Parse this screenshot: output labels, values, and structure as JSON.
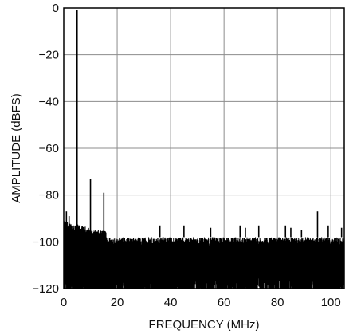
{
  "chart_data": {
    "type": "line",
    "title": "",
    "xlabel": "FREQUENCY (MHz)",
    "ylabel": "AMPLITUDE (dBFS)",
    "xlim": [
      0,
      105
    ],
    "ylim": [
      -120,
      0
    ],
    "x_ticks": [
      0,
      20,
      40,
      60,
      80,
      100
    ],
    "y_ticks": [
      0,
      -20,
      -40,
      -60,
      -80,
      -100,
      -120
    ],
    "x_tick_labels": [
      "0",
      "20",
      "40",
      "60",
      "80",
      "100"
    ],
    "y_tick_labels": [
      "0",
      "−20",
      "−40",
      "−60",
      "−80",
      "−100",
      "−120"
    ],
    "grid": true,
    "series": [
      {
        "color": "#000000",
        "noise_floor_band": [
          -120,
          -100
        ],
        "spurs": [
          {
            "x": 5,
            "y": -1
          },
          {
            "x": 10,
            "y": -73
          },
          {
            "x": 15,
            "y": -79
          },
          {
            "x": 1,
            "y": -87
          },
          {
            "x": 2,
            "y": -89
          },
          {
            "x": 36,
            "y": -93
          },
          {
            "x": 45,
            "y": -93
          },
          {
            "x": 55,
            "y": -94
          },
          {
            "x": 66,
            "y": -93
          },
          {
            "x": 68,
            "y": -94
          },
          {
            "x": 73,
            "y": -93
          },
          {
            "x": 83,
            "y": -93
          },
          {
            "x": 85,
            "y": -94
          },
          {
            "x": 89,
            "y": -95
          },
          {
            "x": 95,
            "y": -87
          },
          {
            "x": 99,
            "y": -93
          },
          {
            "x": 104,
            "y": -94
          }
        ]
      }
    ]
  }
}
